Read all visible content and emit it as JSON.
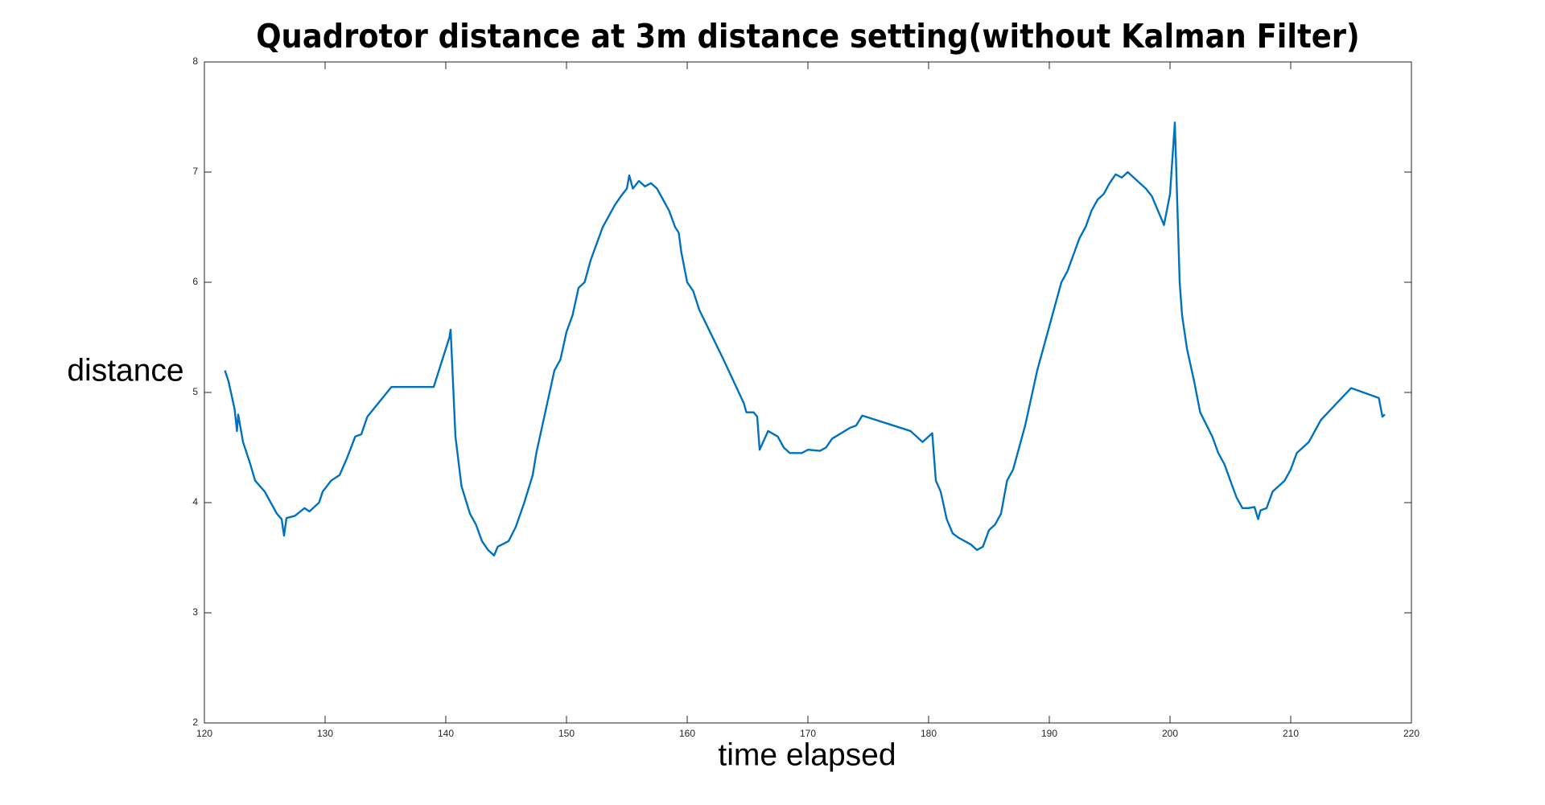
{
  "chart_data": {
    "type": "line",
    "title": "Quadrotor distance at 3m distance setting(without Kalman Filter)",
    "x_label": "time elapsed",
    "y_label": "distance",
    "color": "#0072bd",
    "xlim": [
      120,
      220
    ],
    "xticks": [
      120,
      130,
      140,
      150,
      160,
      170,
      180,
      190,
      200,
      210,
      220
    ],
    "ylim": [
      2,
      8
    ],
    "yticks": [
      2,
      3,
      4,
      5,
      6,
      7,
      8
    ],
    "x": [
      121.7,
      122.0,
      122.5,
      122.7,
      122.8,
      123.2,
      123.8,
      124.2,
      125.0,
      125.5,
      126.0,
      126.4,
      126.6,
      126.8,
      127.5,
      128.3,
      128.7,
      129.5,
      129.8,
      130.5,
      131.2,
      131.8,
      132.5,
      133.0,
      133.5,
      135.5,
      139.0,
      140.3,
      140.4,
      140.8,
      141.3,
      142.0,
      142.5,
      143.0,
      143.5,
      144.0,
      144.3,
      145.2,
      145.8,
      146.5,
      147.2,
      147.5,
      148.5,
      149.0,
      149.5,
      150.0,
      150.5,
      151.0,
      151.5,
      152.0,
      152.5,
      153.0,
      153.5,
      154.0,
      154.5,
      155.0,
      155.2,
      155.5,
      156.0,
      156.5,
      157.0,
      157.5,
      158.0,
      158.5,
      159.0,
      159.3,
      159.5,
      160.0,
      160.5,
      161.0,
      163.0,
      164.7,
      164.9,
      165.5,
      165.8,
      166.0,
      166.7,
      167.5,
      168.0,
      168.5,
      169.5,
      170.0,
      171.0,
      171.5,
      172.0,
      173.5,
      174.0,
      174.5,
      178.5,
      179.0,
      179.5,
      180.3,
      180.6,
      181.0,
      181.5,
      182.0,
      182.5,
      183.5,
      184.0,
      184.5,
      185.0,
      185.5,
      186.0,
      186.5,
      187.0,
      187.5,
      188.0,
      188.5,
      189.0,
      189.5,
      190.0,
      190.5,
      191.0,
      191.5,
      192.0,
      192.5,
      193.0,
      193.5,
      194.0,
      194.5,
      195.0,
      195.5,
      196.0,
      196.5,
      197.0,
      197.5,
      198.0,
      198.5,
      199.0,
      199.5,
      200.0,
      200.4,
      200.8,
      201.0,
      201.4,
      202.0,
      202.5,
      203.5,
      204.0,
      204.5,
      205.0,
      205.5,
      206.0,
      206.5,
      207.0,
      207.3,
      207.5,
      208.0,
      208.5,
      209.0,
      209.5,
      210.0,
      210.5,
      211.0,
      211.5,
      212.0,
      212.5,
      215.0,
      217.3,
      217.6,
      217.8
    ],
    "values": [
      5.2,
      5.1,
      4.85,
      4.65,
      4.8,
      4.55,
      4.35,
      4.2,
      4.1,
      4.0,
      3.9,
      3.85,
      3.7,
      3.86,
      3.88,
      3.95,
      3.92,
      4.0,
      4.1,
      4.2,
      4.25,
      4.4,
      4.6,
      4.62,
      4.78,
      5.05,
      5.05,
      5.5,
      5.57,
      4.6,
      4.15,
      3.9,
      3.8,
      3.65,
      3.57,
      3.52,
      3.6,
      3.65,
      3.78,
      4.0,
      4.25,
      4.45,
      4.95,
      5.2,
      5.3,
      5.55,
      5.7,
      5.95,
      6.0,
      6.2,
      6.35,
      6.5,
      6.6,
      6.7,
      6.78,
      6.85,
      6.97,
      6.85,
      6.92,
      6.87,
      6.9,
      6.85,
      6.75,
      6.65,
      6.5,
      6.45,
      6.28,
      6.0,
      5.92,
      5.75,
      5.3,
      4.9,
      4.82,
      4.82,
      4.78,
      4.48,
      4.65,
      4.6,
      4.5,
      4.45,
      4.45,
      4.48,
      4.47,
      4.5,
      4.58,
      4.68,
      4.7,
      4.79,
      4.65,
      4.6,
      4.55,
      4.63,
      4.2,
      4.1,
      3.85,
      3.72,
      3.68,
      3.62,
      3.57,
      3.6,
      3.75,
      3.8,
      3.9,
      4.2,
      4.3,
      4.5,
      4.7,
      4.95,
      5.2,
      5.4,
      5.6,
      5.8,
      6.0,
      6.1,
      6.25,
      6.4,
      6.5,
      6.65,
      6.75,
      6.8,
      6.9,
      6.98,
      6.95,
      7.0,
      6.95,
      6.9,
      6.85,
      6.78,
      6.65,
      6.52,
      6.8,
      7.45,
      6.0,
      5.7,
      5.4,
      5.1,
      4.82,
      4.6,
      4.45,
      4.35,
      4.2,
      4.05,
      3.95,
      3.95,
      3.96,
      3.85,
      3.93,
      3.95,
      4.1,
      4.15,
      4.2,
      4.3,
      4.45,
      4.5,
      4.55,
      4.65,
      4.75,
      5.04,
      4.95,
      4.78,
      4.8
    ]
  }
}
